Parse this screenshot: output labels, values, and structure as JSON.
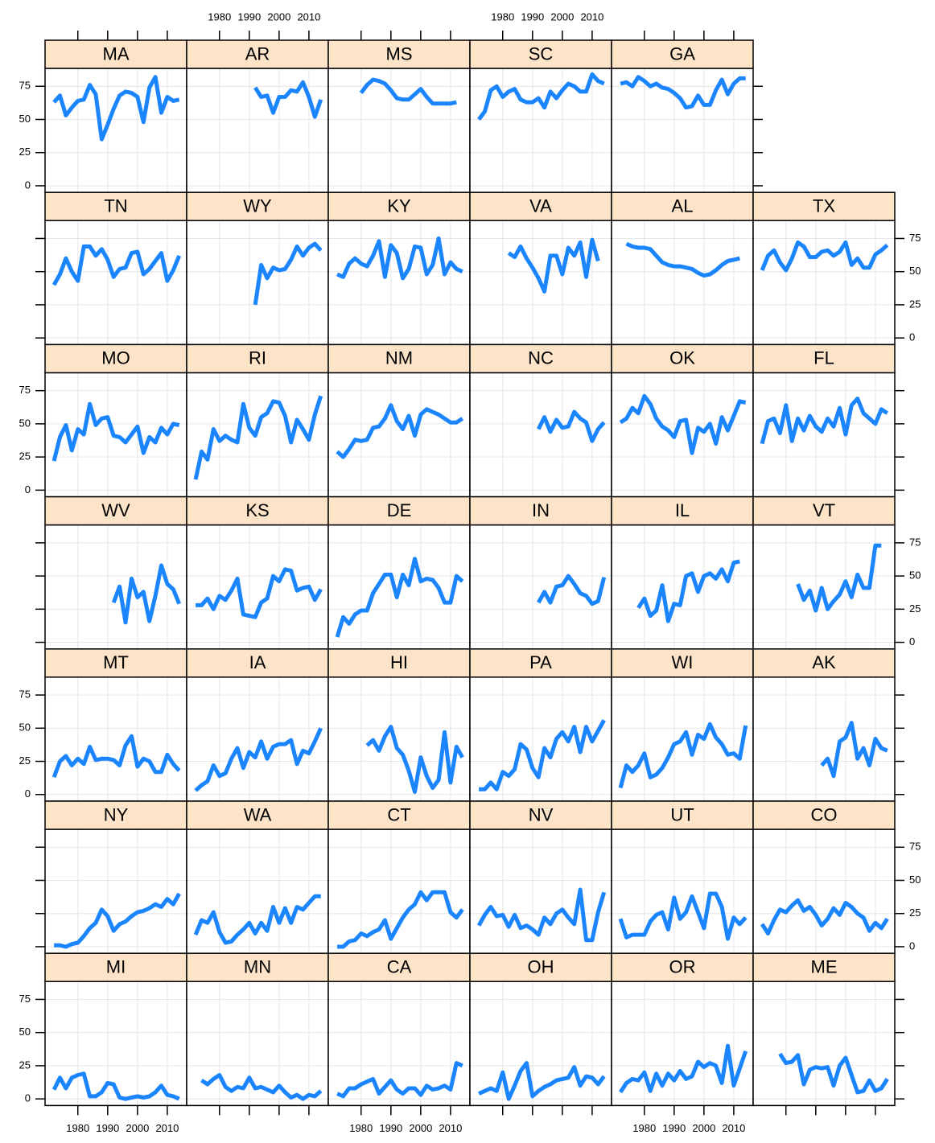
{
  "chart_data": {
    "type": "line",
    "color": "#1a85ff",
    "grid": true,
    "x": [
      1972,
      1974,
      1976,
      1978,
      1980,
      1982,
      1984,
      1986,
      1988,
      1990,
      1992,
      1994,
      1996,
      1998,
      2000,
      2002,
      2004,
      2006,
      2008,
      2010,
      2012,
      2014
    ],
    "xlim": [
      1969,
      2016.5
    ],
    "xticks": [
      1980,
      1990,
      2000,
      2010
    ],
    "ylim": [
      -5,
      88.5
    ],
    "yticks": [
      0,
      25,
      50,
      75
    ],
    "panels": [
      {
        "name": "MA",
        "values": [
          63,
          68,
          53,
          59,
          64,
          65,
          76,
          69,
          35,
          46,
          58,
          68,
          71,
          70,
          67,
          48,
          74,
          82,
          55,
          67,
          64,
          65
        ]
      },
      {
        "name": "AR",
        "values": [
          null,
          null,
          null,
          null,
          null,
          null,
          null,
          null,
          null,
          null,
          74,
          67,
          68,
          55,
          67,
          67,
          72,
          71,
          78,
          67,
          52,
          65
        ]
      },
      {
        "name": "MS",
        "values": [
          null,
          null,
          null,
          null,
          70,
          76,
          80,
          79,
          77,
          72,
          66,
          65,
          65,
          69,
          73,
          67,
          62,
          62,
          62,
          62,
          63,
          null
        ]
      },
      {
        "name": "SC",
        "values": [
          50,
          56,
          72,
          75,
          67,
          71,
          73,
          65,
          63,
          63,
          66,
          59,
          71,
          66,
          72,
          77,
          75,
          71,
          71,
          84,
          79,
          77
        ]
      },
      {
        "name": "GA",
        "values": [
          77,
          78,
          75,
          82,
          79,
          75,
          77,
          74,
          73,
          70,
          66,
          59,
          60,
          68,
          61,
          61,
          72,
          80,
          69,
          77,
          81,
          81
        ]
      },
      {
        "name": "TN",
        "values": [
          40,
          48,
          60,
          50,
          43,
          69,
          69,
          62,
          67,
          59,
          46,
          52,
          53,
          64,
          65,
          48,
          52,
          58,
          64,
          43,
          51,
          62
        ]
      },
      {
        "name": "WY",
        "values": [
          null,
          null,
          null,
          null,
          null,
          null,
          null,
          null,
          null,
          null,
          25,
          55,
          45,
          53,
          51,
          52,
          59,
          69,
          62,
          68,
          71,
          66
        ]
      },
      {
        "name": "KY",
        "values": [
          48,
          46,
          56,
          60,
          56,
          54,
          62,
          73,
          46,
          70,
          64,
          45,
          52,
          69,
          68,
          48,
          55,
          75,
          48,
          57,
          52,
          50
        ]
      },
      {
        "name": "VA",
        "values": [
          null,
          null,
          null,
          null,
          null,
          64,
          61,
          69,
          60,
          53,
          45,
          35,
          62,
          62,
          48,
          68,
          62,
          72,
          46,
          74,
          58,
          null
        ]
      },
      {
        "name": "AL",
        "values": [
          null,
          71,
          69,
          68,
          68,
          67,
          62,
          57,
          55,
          54,
          54,
          53,
          52,
          49,
          47,
          48,
          51,
          55,
          58,
          59,
          60,
          null
        ]
      },
      {
        "name": "TX",
        "values": [
          51,
          62,
          66,
          57,
          51,
          60,
          72,
          69,
          61,
          61,
          65,
          66,
          62,
          65,
          72,
          55,
          60,
          53,
          53,
          63,
          66,
          70
        ]
      },
      {
        "name": "MO",
        "values": [
          22,
          40,
          49,
          30,
          46,
          42,
          65,
          49,
          54,
          55,
          41,
          40,
          36,
          42,
          48,
          28,
          40,
          36,
          47,
          42,
          50,
          49
        ]
      },
      {
        "name": "RI",
        "values": [
          8,
          29,
          23,
          46,
          37,
          41,
          38,
          36,
          65,
          47,
          41,
          55,
          58,
          67,
          66,
          56,
          36,
          53,
          46,
          38,
          57,
          71
        ]
      },
      {
        "name": "NM",
        "values": [
          29,
          25,
          31,
          38,
          37,
          38,
          47,
          48,
          54,
          64,
          52,
          46,
          56,
          41,
          57,
          61,
          59,
          57,
          54,
          51,
          51,
          54
        ]
      },
      {
        "name": "NC",
        "values": [
          null,
          null,
          null,
          null,
          null,
          null,
          null,
          null,
          null,
          null,
          46,
          55,
          44,
          53,
          47,
          48,
          59,
          54,
          51,
          37,
          46,
          51
        ]
      },
      {
        "name": "OK",
        "values": [
          51,
          54,
          62,
          58,
          71,
          65,
          54,
          48,
          45,
          40,
          52,
          53,
          28,
          47,
          44,
          50,
          35,
          55,
          45,
          56,
          67,
          66
        ]
      },
      {
        "name": "FL",
        "values": [
          35,
          52,
          54,
          43,
          64,
          37,
          54,
          45,
          56,
          48,
          44,
          54,
          48,
          62,
          42,
          64,
          69,
          58,
          54,
          50,
          61,
          58
        ]
      },
      {
        "name": "WV",
        "values": [
          null,
          null,
          null,
          null,
          null,
          null,
          null,
          null,
          null,
          null,
          30,
          42,
          15,
          48,
          34,
          38,
          16,
          35,
          58,
          44,
          40,
          29
        ]
      },
      {
        "name": "KS",
        "values": [
          28,
          28,
          33,
          25,
          35,
          32,
          39,
          48,
          21,
          20,
          19,
          30,
          33,
          50,
          46,
          55,
          54,
          39,
          41,
          42,
          32,
          40
        ]
      },
      {
        "name": "DE",
        "values": [
          4,
          19,
          14,
          21,
          24,
          24,
          37,
          44,
          51,
          51,
          34,
          51,
          43,
          63,
          46,
          48,
          47,
          41,
          30,
          30,
          50,
          46
        ]
      },
      {
        "name": "IN",
        "values": [
          null,
          null,
          null,
          null,
          null,
          null,
          null,
          null,
          null,
          null,
          30,
          38,
          30,
          42,
          43,
          50,
          44,
          37,
          35,
          29,
          31,
          49
        ]
      },
      {
        "name": "IL",
        "values": [
          null,
          null,
          null,
          26,
          33,
          20,
          24,
          43,
          16,
          29,
          28,
          50,
          52,
          38,
          50,
          52,
          48,
          55,
          46,
          60,
          61,
          null
        ]
      },
      {
        "name": "VT",
        "values": [
          null,
          null,
          null,
          null,
          null,
          null,
          44,
          32,
          39,
          24,
          41,
          25,
          31,
          36,
          46,
          34,
          51,
          41,
          41,
          73,
          73,
          null
        ]
      },
      {
        "name": "MT",
        "values": [
          13,
          25,
          29,
          22,
          27,
          23,
          36,
          26,
          27,
          27,
          26,
          22,
          37,
          44,
          21,
          27,
          25,
          17,
          17,
          30,
          23,
          18
        ]
      },
      {
        "name": "IA",
        "values": [
          3,
          7,
          10,
          22,
          14,
          16,
          27,
          35,
          20,
          32,
          28,
          40,
          27,
          36,
          38,
          38,
          41,
          23,
          33,
          31,
          40,
          50
        ]
      },
      {
        "name": "HI",
        "values": [
          null,
          null,
          null,
          null,
          null,
          37,
          41,
          33,
          44,
          51,
          35,
          30,
          18,
          2,
          28,
          14,
          5,
          11,
          47,
          9,
          36,
          28
        ]
      },
      {
        "name": "PA",
        "values": [
          4,
          4,
          9,
          4,
          17,
          14,
          19,
          38,
          34,
          20,
          13,
          35,
          28,
          42,
          47,
          40,
          51,
          32,
          51,
          40,
          48,
          56
        ]
      },
      {
        "name": "WI",
        "values": [
          5,
          22,
          17,
          22,
          31,
          13,
          15,
          20,
          28,
          38,
          40,
          47,
          30,
          45,
          42,
          53,
          43,
          38,
          30,
          31,
          27,
          52
        ]
      },
      {
        "name": "AK",
        "values": [
          null,
          null,
          null,
          null,
          null,
          null,
          null,
          null,
          null,
          null,
          22,
          27,
          14,
          40,
          43,
          54,
          27,
          35,
          22,
          42,
          35,
          33
        ]
      },
      {
        "name": "NY",
        "values": [
          1,
          1,
          0,
          2,
          3,
          8,
          14,
          18,
          28,
          23,
          12,
          17,
          19,
          23,
          26,
          27,
          29,
          32,
          30,
          36,
          32,
          40
        ]
      },
      {
        "name": "WA",
        "values": [
          9,
          20,
          18,
          26,
          11,
          3,
          4,
          9,
          13,
          18,
          10,
          18,
          12,
          30,
          18,
          29,
          18,
          30,
          28,
          33,
          38,
          38
        ]
      },
      {
        "name": "CT",
        "values": [
          0,
          0,
          4,
          5,
          10,
          8,
          11,
          13,
          20,
          6,
          14,
          22,
          28,
          32,
          41,
          35,
          41,
          41,
          41,
          26,
          22,
          28
        ]
      },
      {
        "name": "NV",
        "values": [
          16,
          24,
          30,
          23,
          24,
          15,
          24,
          14,
          16,
          13,
          9,
          22,
          17,
          25,
          28,
          22,
          17,
          43,
          5,
          5,
          26,
          41
        ]
      },
      {
        "name": "UT",
        "values": [
          21,
          7,
          9,
          9,
          9,
          19,
          24,
          26,
          13,
          37,
          21,
          26,
          38,
          26,
          14,
          40,
          40,
          30,
          6,
          22,
          17,
          22
        ]
      },
      {
        "name": "CO",
        "values": [
          17,
          10,
          20,
          28,
          26,
          31,
          35,
          27,
          30,
          24,
          16,
          21,
          29,
          24,
          33,
          30,
          25,
          22,
          12,
          18,
          14,
          21
        ]
      },
      {
        "name": "MI",
        "values": [
          7,
          16,
          8,
          16,
          18,
          19,
          2,
          2,
          5,
          12,
          11,
          1,
          0,
          1,
          2,
          1,
          2,
          5,
          10,
          3,
          2,
          0
        ]
      },
      {
        "name": "MN",
        "values": [
          null,
          14,
          11,
          15,
          18,
          9,
          6,
          9,
          8,
          16,
          8,
          9,
          7,
          5,
          10,
          5,
          1,
          3,
          0,
          3,
          2,
          6
        ]
      },
      {
        "name": "CA",
        "values": [
          4,
          2,
          8,
          8,
          11,
          13,
          15,
          4,
          9,
          14,
          7,
          4,
          8,
          8,
          3,
          10,
          7,
          8,
          10,
          7,
          27,
          25
        ]
      },
      {
        "name": "OH",
        "values": [
          4,
          6,
          8,
          6,
          20,
          0,
          10,
          21,
          27,
          2,
          6,
          9,
          11,
          14,
          15,
          16,
          24,
          10,
          17,
          16,
          11,
          17
        ]
      },
      {
        "name": "OR",
        "values": [
          5,
          12,
          15,
          14,
          20,
          6,
          19,
          10,
          19,
          14,
          21,
          15,
          17,
          28,
          24,
          27,
          25,
          12,
          40,
          10,
          23,
          36
        ]
      },
      {
        "name": "ME",
        "values": [
          null,
          null,
          null,
          34,
          27,
          28,
          33,
          11,
          22,
          24,
          23,
          24,
          10,
          25,
          31,
          18,
          5,
          6,
          14,
          6,
          8,
          15
        ]
      }
    ]
  }
}
